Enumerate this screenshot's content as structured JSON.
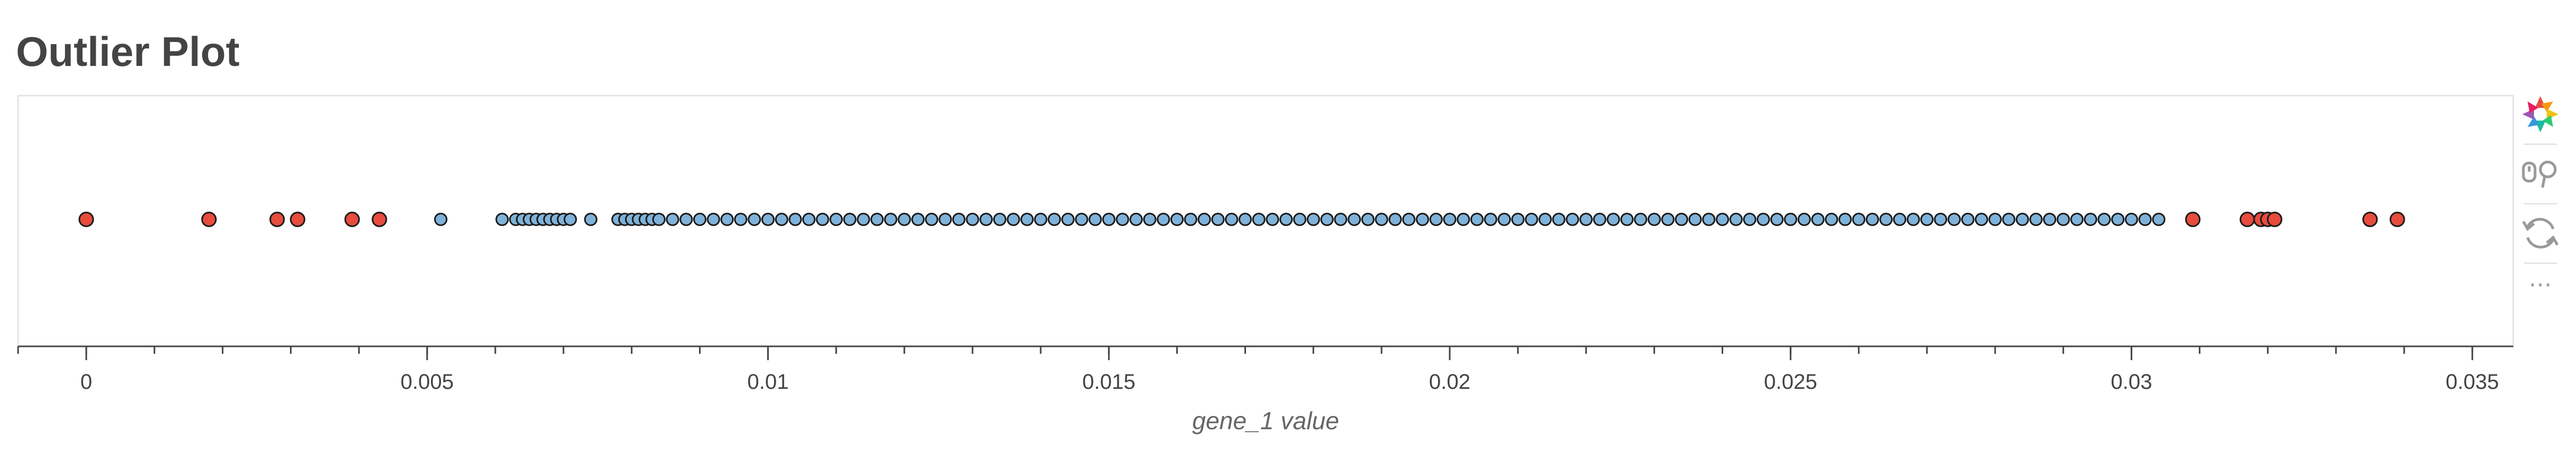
{
  "chart_data": {
    "type": "scatter",
    "title": "Outlier Plot",
    "xlabel": "gene_1 value",
    "ylabel": "",
    "xlim": [
      -0.001,
      0.0356
    ],
    "xticks": [
      0,
      0.005,
      0.01,
      0.015,
      0.02,
      0.025,
      0.03,
      0.035
    ],
    "xtick_labels": [
      "0",
      "0.005",
      "0.01",
      "0.015",
      "0.02",
      "0.025",
      "0.03",
      "0.035"
    ],
    "grid": false,
    "legend": "none",
    "series": [
      {
        "color": "#e74c3c",
        "x": [
          0.0,
          0.0018,
          0.0028,
          0.0031,
          0.0039,
          0.0043,
          0.0309,
          0.0317,
          0.0319,
          0.032,
          0.0321,
          0.0335,
          0.0339
        ]
      },
      {
        "color": "#7fb2d9",
        "x": [
          0.0052,
          0.0061,
          0.0063,
          0.0064,
          0.0065,
          0.0066,
          0.0067,
          0.0068,
          0.0069,
          0.007,
          0.0071,
          0.0074,
          0.0078,
          0.0079,
          0.008,
          0.0081,
          0.0082,
          0.0083,
          0.0084,
          0.0086,
          0.0088,
          0.009,
          0.0092,
          0.0094,
          0.0096,
          0.0098,
          0.01,
          0.0102,
          0.0104,
          0.0106,
          0.0108,
          0.011,
          0.0112,
          0.0114,
          0.0116,
          0.0118,
          0.012,
          0.0122,
          0.0124,
          0.0126,
          0.0128,
          0.013,
          0.0132,
          0.0134,
          0.0136,
          0.0138,
          0.014,
          0.0142,
          0.0144,
          0.0146,
          0.0148,
          0.015,
          0.0152,
          0.0154,
          0.0156,
          0.0158,
          0.016,
          0.0162,
          0.0164,
          0.0166,
          0.0168,
          0.017,
          0.0172,
          0.0174,
          0.0176,
          0.0178,
          0.018,
          0.0182,
          0.0184,
          0.0186,
          0.0188,
          0.019,
          0.0192,
          0.0194,
          0.0196,
          0.0198,
          0.02,
          0.0202,
          0.0204,
          0.0206,
          0.0208,
          0.021,
          0.0212,
          0.0214,
          0.0216,
          0.0218,
          0.022,
          0.0222,
          0.0224,
          0.0226,
          0.0228,
          0.023,
          0.0232,
          0.0234,
          0.0236,
          0.0238,
          0.024,
          0.0242,
          0.0244,
          0.0246,
          0.0248,
          0.025,
          0.0252,
          0.0254,
          0.0256,
          0.0258,
          0.026,
          0.0262,
          0.0264,
          0.0266,
          0.0268,
          0.027,
          0.0272,
          0.0274,
          0.0276,
          0.0278,
          0.028,
          0.0282,
          0.0284,
          0.0286,
          0.0288,
          0.029,
          0.0292,
          0.0294,
          0.0296,
          0.0298,
          0.03,
          0.0302,
          0.0304
        ]
      }
    ]
  },
  "toolbar": {
    "tools": [
      "bokeh-logo-icon",
      "hover-icon",
      "reset-icon",
      "more-icon"
    ],
    "more_label": "⋯"
  }
}
